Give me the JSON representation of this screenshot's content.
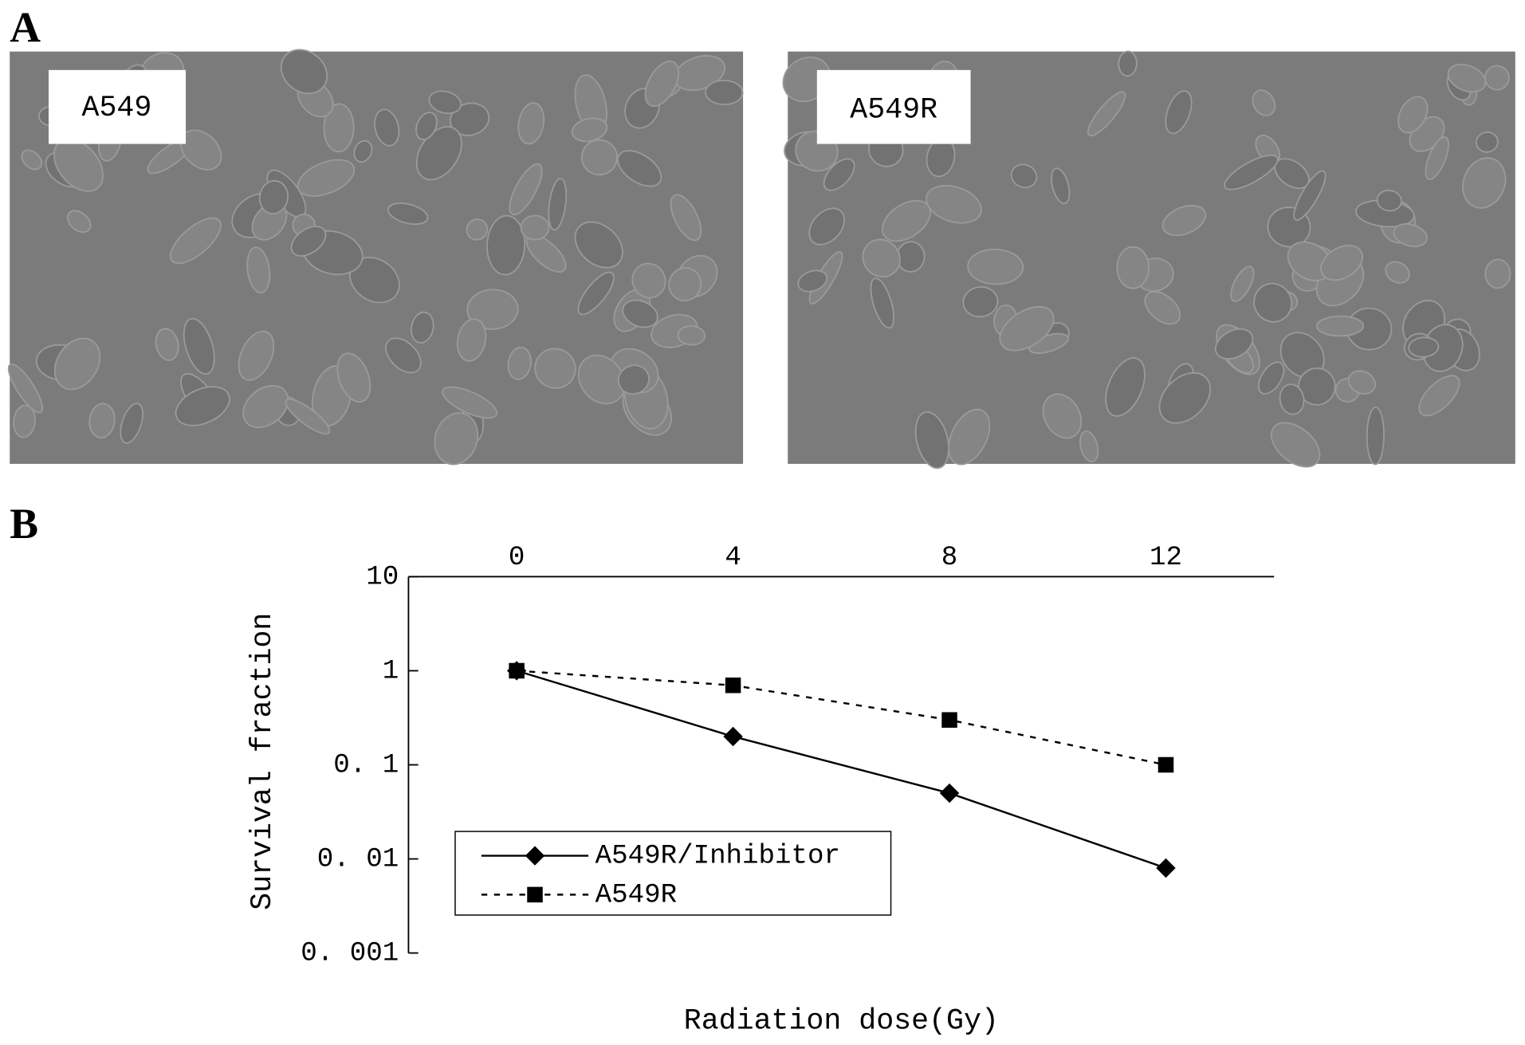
{
  "panel_labels": [
    "A",
    "B"
  ],
  "images": [
    {
      "label": "A549"
    },
    {
      "label": "A549R"
    }
  ],
  "chart_data": {
    "type": "line",
    "x_label": "Radiation dose(Gy)",
    "y_label": "Survival fraction",
    "x": [
      0,
      4,
      8,
      12
    ],
    "xlim": [
      -2,
      14
    ],
    "xticks": [
      0,
      4,
      8,
      12
    ],
    "y_scale": "log",
    "ylim": [
      0.001,
      10
    ],
    "yticks": [
      10,
      1,
      {
        "value": 0.1,
        "label": "0. 1"
      },
      {
        "value": 0.01,
        "label": "0. 01"
      },
      {
        "value": 0.001,
        "label": "0. 001"
      }
    ],
    "legend": "lower center",
    "series": [
      {
        "name": "A549R/Inhibitor",
        "color": "#000000",
        "line_style": "solid",
        "marker": "diamond",
        "values": [
          1,
          0.2,
          0.05,
          0.008
        ]
      },
      {
        "name": "A549R",
        "color": "#000000",
        "line_style": "dashed",
        "marker": "square",
        "values": [
          1,
          0.7,
          0.3,
          0.1
        ]
      }
    ]
  }
}
